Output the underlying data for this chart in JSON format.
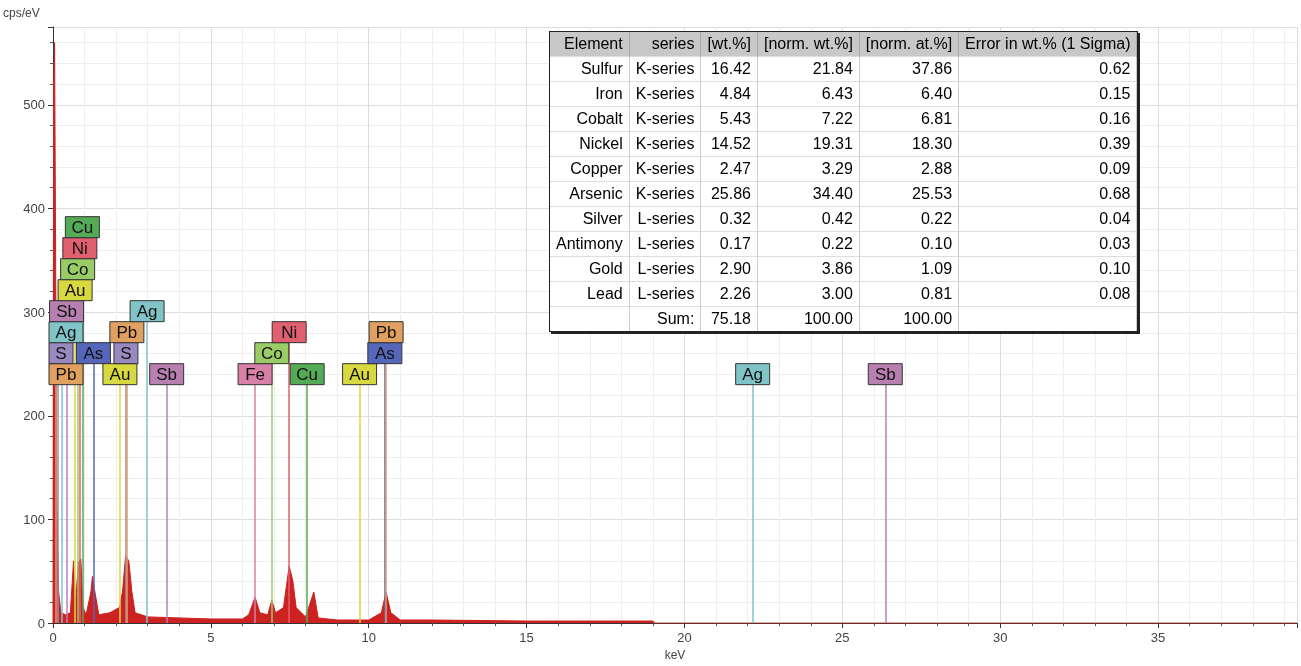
{
  "chart_data": [
    {
      "type": "area",
      "xlabel": "keV",
      "ylabel": "cps/eV",
      "x": [
        0,
        0.02,
        0.05,
        0.08,
        0.12,
        0.18,
        0.25,
        0.4,
        0.55,
        0.65,
        0.72,
        0.8,
        0.88,
        0.95,
        1.05,
        1.2,
        1.25,
        1.3,
        1.45,
        1.8,
        2.1,
        2.2,
        2.3,
        2.4,
        2.5,
        2.6,
        3.0,
        4.0,
        5.0,
        6.0,
        6.2,
        6.4,
        6.55,
        6.8,
        6.93,
        7.05,
        7.3,
        7.48,
        7.6,
        7.7,
        8.0,
        8.26,
        8.4,
        9.0,
        10.0,
        10.4,
        10.55,
        10.7,
        11.0,
        12.0,
        15.0,
        19.0,
        19.05,
        39.4
      ],
      "series": [
        {
          "color": "#cc2222",
          "values": [
            0,
            515,
            560,
            375,
            120,
            30,
            10,
            8,
            10,
            60,
            20,
            58,
            62,
            15,
            8,
            30,
            45,
            35,
            8,
            10,
            15,
            30,
            65,
            60,
            30,
            10,
            6,
            5,
            4,
            4,
            8,
            25,
            10,
            8,
            22,
            10,
            15,
            55,
            40,
            15,
            6,
            30,
            5,
            3,
            3,
            10,
            30,
            10,
            3,
            3,
            2,
            2,
            0,
            0
          ]
        }
      ],
      "xlim": [
        0,
        39.4
      ],
      "xticks": [
        0,
        5,
        10,
        15,
        20,
        25,
        30,
        35
      ],
      "ylim": [
        0,
        575
      ],
      "yticks": [
        0,
        100,
        200,
        300,
        400,
        500
      ],
      "grid": true,
      "ref_lines": [
        {
          "axis": "x",
          "value": 0.1,
          "label": "Pb",
          "color": "#e0a060"
        },
        {
          "axis": "x",
          "value": 0.15,
          "label": "S",
          "color": "#9a88c0"
        },
        {
          "axis": "x",
          "value": 0.29,
          "label": "Ag",
          "color": "#80c4c8"
        },
        {
          "axis": "x",
          "value": 0.43,
          "label": "Sb",
          "color": "#b880b0"
        },
        {
          "axis": "x",
          "value": 0.7,
          "label": "Au",
          "color": "#d8d840"
        },
        {
          "axis": "x",
          "value": 0.78,
          "label": "Co",
          "color": "#99cc66"
        },
        {
          "axis": "x",
          "value": 0.85,
          "label": "Ni",
          "color": "#e06070"
        },
        {
          "axis": "x",
          "value": 0.93,
          "label": "Cu",
          "color": "#55aa55"
        },
        {
          "axis": "x",
          "value": 1.28,
          "label": "As",
          "color": "#5566bb"
        },
        {
          "axis": "x",
          "value": 2.12,
          "label": "Au",
          "color": "#d8d840"
        },
        {
          "axis": "x",
          "value": 2.31,
          "label": "S",
          "color": "#9a88c0"
        },
        {
          "axis": "x",
          "value": 2.34,
          "label": "Pb",
          "color": "#e0a060"
        },
        {
          "axis": "x",
          "value": 2.98,
          "label": "Ag",
          "color": "#80c4c8"
        },
        {
          "axis": "x",
          "value": 3.6,
          "label": "Sb",
          "color": "#b880b0"
        },
        {
          "axis": "x",
          "value": 6.4,
          "label": "Fe",
          "color": "#d880a8"
        },
        {
          "axis": "x",
          "value": 6.93,
          "label": "Co",
          "color": "#99cc66"
        },
        {
          "axis": "x",
          "value": 7.48,
          "label": "Ni",
          "color": "#e06070"
        },
        {
          "axis": "x",
          "value": 8.05,
          "label": "Cu",
          "color": "#55aa55"
        },
        {
          "axis": "x",
          "value": 9.71,
          "label": "Au",
          "color": "#d8d840"
        },
        {
          "axis": "x",
          "value": 10.51,
          "label": "As",
          "color": "#5566bb"
        },
        {
          "axis": "x",
          "value": 10.55,
          "label": "Pb",
          "color": "#e0a060"
        },
        {
          "axis": "x",
          "value": 22.16,
          "label": "Ag",
          "color": "#80c4c8"
        },
        {
          "axis": "x",
          "value": 26.36,
          "label": "Sb",
          "color": "#b880b0"
        }
      ]
    },
    {
      "type": "other",
      "categories": [
        "Element",
        "series",
        "[wt.%]",
        "[norm. wt.%]",
        "[norm. at.%]",
        "Error in wt.% (1 Sigma)"
      ],
      "y_categories": [
        "Sulfur",
        "Iron",
        "Cobalt",
        "Nickel",
        "Copper",
        "Arsenic",
        "Silver",
        "Antimony",
        "Gold",
        "Lead",
        null
      ],
      "cell_labels": [
        [
          "K-series",
          "16.42",
          "21.84",
          "37.86",
          "0.62"
        ],
        [
          "K-series",
          "4.84",
          "6.43",
          "6.40",
          "0.15"
        ],
        [
          "K-series",
          "5.43",
          "7.22",
          "6.81",
          "0.16"
        ],
        [
          "K-series",
          "14.52",
          "19.31",
          "18.30",
          "0.39"
        ],
        [
          "K-series",
          "2.47",
          "3.29",
          "2.88",
          "0.09"
        ],
        [
          "K-series",
          "25.86",
          "34.40",
          "25.53",
          "0.68"
        ],
        [
          "L-series",
          "0.32",
          "0.42",
          "0.22",
          "0.04"
        ],
        [
          "L-series",
          "0.17",
          "0.22",
          "0.10",
          "0.03"
        ],
        [
          "L-series",
          "2.90",
          "3.86",
          "1.09",
          "0.10"
        ],
        [
          "L-series",
          "2.26",
          "3.00",
          "0.81",
          "0.08"
        ],
        [
          "Sum:",
          "75.18",
          "100.00",
          "100.00",
          null
        ]
      ]
    }
  ]
}
